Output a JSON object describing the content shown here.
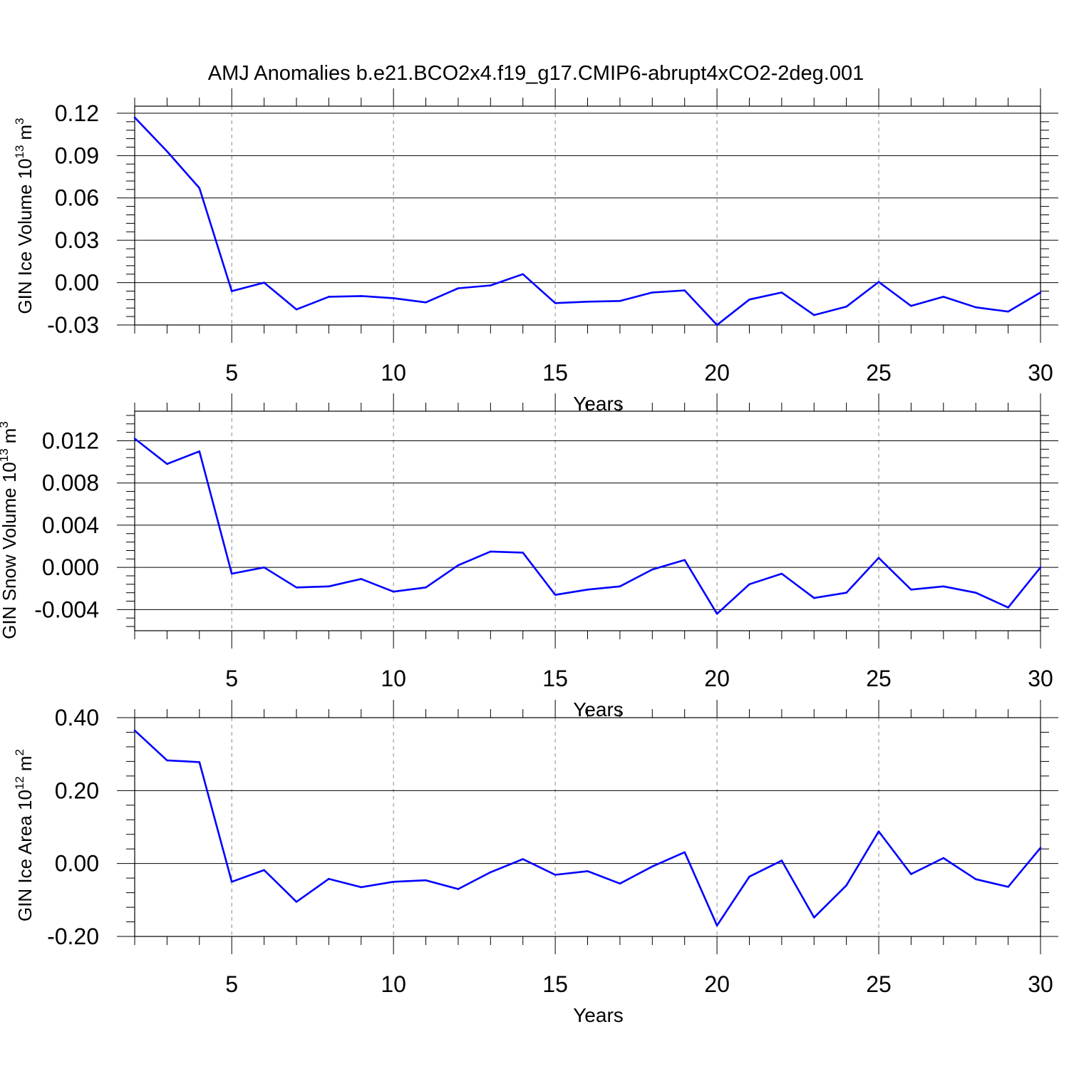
{
  "title": "AMJ Anomalies b.e21.BCO2x4.f19_g17.CMIP6-abrupt4xCO2-2deg.001",
  "colors": {
    "line": "#0000ff",
    "axis": "#000000",
    "grid": "#888888"
  },
  "chart_data": [
    {
      "type": "line",
      "xlabel": "Years",
      "ylabel_prefix": "GIN Ice Volume 10",
      "ylabel_exp": "13",
      "ylabel_unit": "m",
      "ylabel_unit_exp": "3",
      "xlim": [
        2,
        30
      ],
      "ylim": [
        -0.03,
        0.125
      ],
      "xticks": [
        5,
        10,
        15,
        20,
        25,
        30
      ],
      "xtick_labels": [
        "5",
        "10",
        "15",
        "20",
        "25",
        "30"
      ],
      "yticks": [
        -0.03,
        0.0,
        0.03,
        0.06,
        0.09,
        0.12
      ],
      "ytick_labels": [
        "-0.03",
        "0.00",
        "0.03",
        "0.06",
        "0.09",
        "0.12"
      ],
      "grid": "vertical dashed at major x ticks",
      "x": [
        2,
        3,
        4,
        5,
        6,
        7,
        8,
        9,
        10,
        11,
        12,
        13,
        14,
        15,
        16,
        17,
        18,
        19,
        20,
        21,
        22,
        23,
        24,
        25,
        26,
        27,
        28,
        29,
        30
      ],
      "series": [
        {
          "values": [
            0.117,
            0.093,
            0.067,
            -0.006,
            0.0,
            -0.019,
            -0.01,
            -0.0095,
            -0.011,
            -0.014,
            -0.004,
            -0.002,
            0.006,
            -0.0145,
            -0.0135,
            -0.013,
            -0.007,
            -0.0055,
            -0.03,
            -0.012,
            -0.007,
            -0.023,
            -0.017,
            0.0005,
            -0.0165,
            -0.01,
            -0.0175,
            -0.0205,
            -0.007
          ]
        }
      ]
    },
    {
      "type": "line",
      "xlabel": "Years",
      "ylabel_prefix": "GIN Snow Volume 10",
      "ylabel_exp": "13",
      "ylabel_unit": "m",
      "ylabel_unit_exp": "3",
      "xlim": [
        2,
        30
      ],
      "ylim": [
        -0.006,
        0.0148
      ],
      "xticks": [
        5,
        10,
        15,
        20,
        25,
        30
      ],
      "xtick_labels": [
        "5",
        "10",
        "15",
        "20",
        "25",
        "30"
      ],
      "yticks": [
        -0.004,
        0.0,
        0.004,
        0.008,
        0.012
      ],
      "ytick_labels": [
        "-0.004",
        "0.000",
        "0.004",
        "0.008",
        "0.012"
      ],
      "grid": "vertical dashed at major x ticks",
      "x": [
        2,
        3,
        4,
        5,
        6,
        7,
        8,
        9,
        10,
        11,
        12,
        13,
        14,
        15,
        16,
        17,
        18,
        19,
        20,
        21,
        22,
        23,
        24,
        25,
        26,
        27,
        28,
        29,
        30
      ],
      "series": [
        {
          "values": [
            0.0122,
            0.0098,
            0.011,
            -0.0006,
            0.0,
            -0.0019,
            -0.0018,
            -0.0011,
            -0.0023,
            -0.0019,
            0.0002,
            0.0015,
            0.0014,
            -0.0026,
            -0.0021,
            -0.0018,
            -0.0002,
            0.0007,
            -0.0044,
            -0.0016,
            -0.0006,
            -0.0029,
            -0.0024,
            0.0009,
            -0.0021,
            -0.0018,
            -0.0024,
            -0.0038,
            0.0
          ]
        }
      ]
    },
    {
      "type": "line",
      "xlabel": "Years",
      "ylabel_prefix": "GIN Ice Area 10",
      "ylabel_exp": "12",
      "ylabel_unit": "m",
      "ylabel_unit_exp": "2",
      "xlim": [
        2,
        30
      ],
      "ylim": [
        -0.2,
        0.4
      ],
      "xticks": [
        5,
        10,
        15,
        20,
        25,
        30
      ],
      "xtick_labels": [
        "5",
        "10",
        "15",
        "20",
        "25",
        "30"
      ],
      "yticks": [
        -0.2,
        0.0,
        0.2,
        0.4
      ],
      "ytick_labels": [
        "-0.20",
        "0.00",
        "0.20",
        "0.40"
      ],
      "grid": "vertical dashed at major x ticks",
      "x": [
        2,
        3,
        4,
        5,
        6,
        7,
        8,
        9,
        10,
        11,
        12,
        13,
        14,
        15,
        16,
        17,
        18,
        19,
        20,
        21,
        22,
        23,
        24,
        25,
        26,
        27,
        28,
        29,
        30
      ],
      "series": [
        {
          "values": [
            0.365,
            0.283,
            0.278,
            -0.05,
            -0.018,
            -0.105,
            -0.042,
            -0.065,
            -0.05,
            -0.046,
            -0.07,
            -0.024,
            0.012,
            -0.031,
            -0.021,
            -0.055,
            -0.008,
            0.031,
            -0.17,
            -0.036,
            0.008,
            -0.148,
            -0.06,
            0.088,
            -0.029,
            0.015,
            -0.043,
            -0.064,
            0.043
          ]
        }
      ]
    }
  ]
}
